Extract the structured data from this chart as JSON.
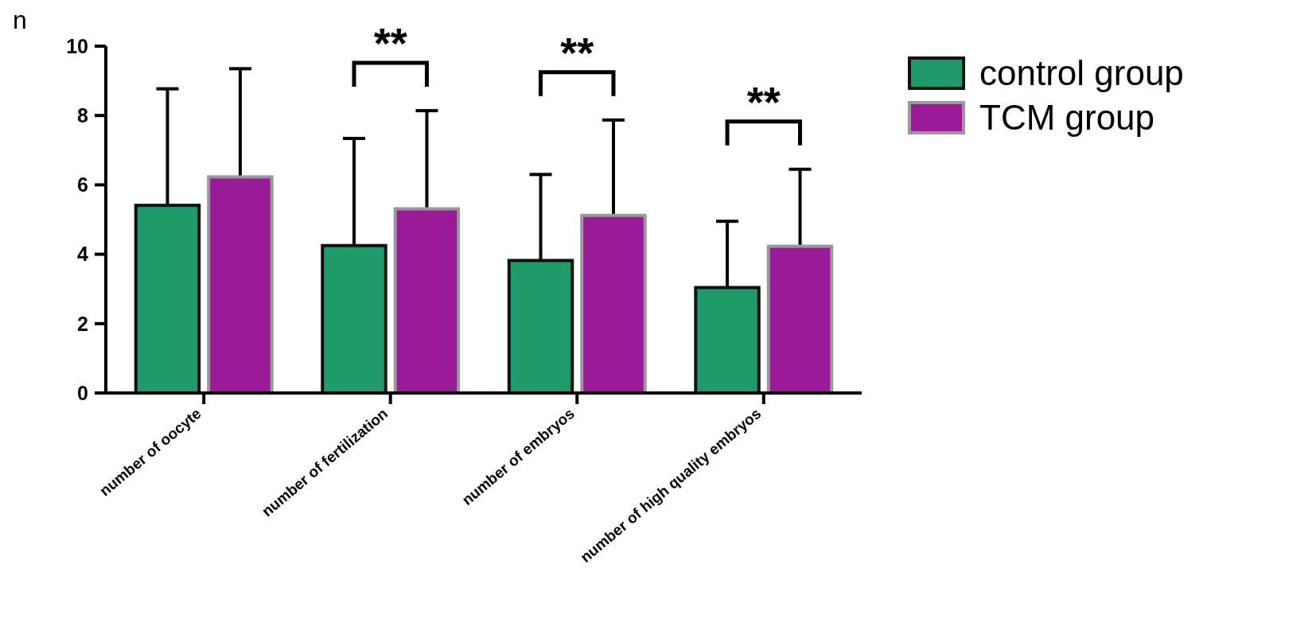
{
  "chart_data": {
    "type": "bar",
    "ylabel": "n",
    "categories": [
      "number of oocyte",
      "number of fertilization",
      "number of embryos",
      "number of high quality embryos"
    ],
    "series": [
      {
        "name": "control group",
        "color": "#1f9a6a",
        "values": [
          5.41,
          4.25,
          3.82,
          3.04
        ],
        "errors": [
          3.36,
          3.09,
          2.48,
          1.91
        ]
      },
      {
        "name": "TCM group",
        "color": "#9a1a9a",
        "values": [
          6.23,
          5.31,
          5.12,
          4.23
        ],
        "errors": [
          3.12,
          2.83,
          2.75,
          2.22
        ]
      }
    ],
    "ylim": [
      0,
      10
    ],
    "yticks": [
      0,
      2,
      4,
      6,
      8,
      10
    ],
    "legend": "right",
    "annotations": [
      "**",
      "**",
      "**"
    ]
  }
}
